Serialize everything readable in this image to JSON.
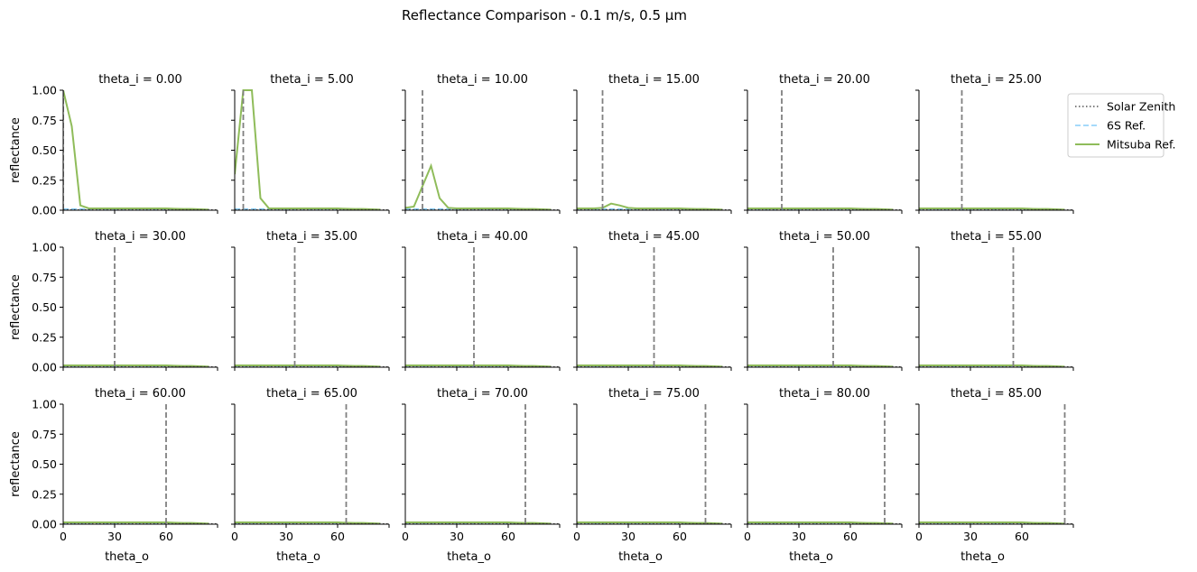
{
  "title": "Reflectance Comparison - 0.1 m/s, 0.5 µm",
  "colors": {
    "solar_zenith": "#808080",
    "six_s": "#87cefa",
    "mitsuba": "#8fbc5a"
  },
  "chart_data": {
    "type": "line",
    "title": "Reflectance Comparison - 0.1 m/s, 0.5 µm",
    "xlabel": "theta_o",
    "ylabel": "reflectance",
    "xlim": [
      0,
      90
    ],
    "ylim": [
      0,
      1
    ],
    "xticks": [
      "0",
      "30",
      "60"
    ],
    "yticks": [
      "0.00",
      "0.25",
      "0.50",
      "0.75",
      "1.00"
    ],
    "grid": false,
    "legend": {
      "placement": "right of top-right panel",
      "entries": [
        "Solar Zenith",
        "6S Ref.",
        "Mitsuba Ref."
      ]
    },
    "theta_o": [
      0,
      5,
      10,
      15,
      20,
      25,
      30,
      35,
      40,
      45,
      50,
      55,
      60,
      65,
      70,
      75,
      80,
      85
    ],
    "panels": [
      {
        "title": "theta_i = 0.00",
        "theta_i": 0,
        "series": [
          {
            "name": "6S Ref.",
            "values": [
              0.01,
              0.01,
              0.01,
              0.01,
              0.01,
              0.01,
              0.01,
              0.01,
              0.01,
              0.01,
              0.01,
              0.01,
              0.01,
              0.01,
              0.01,
              0.01,
              0.005,
              0.003
            ]
          },
          {
            "name": "Mitsuba Ref.",
            "values": [
              1.0,
              0.7,
              0.04,
              0.015,
              0.015,
              0.015,
              0.015,
              0.015,
              0.015,
              0.015,
              0.015,
              0.015,
              0.015,
              0.012,
              0.01,
              0.01,
              0.008,
              0.005
            ]
          }
        ]
      },
      {
        "title": "theta_i = 5.00",
        "theta_i": 5,
        "series": [
          {
            "name": "6S Ref.",
            "values": [
              0.01,
              0.01,
              0.01,
              0.01,
              0.01,
              0.01,
              0.01,
              0.01,
              0.01,
              0.01,
              0.01,
              0.01,
              0.01,
              0.01,
              0.01,
              0.01,
              0.005,
              0.003
            ]
          },
          {
            "name": "Mitsuba Ref.",
            "values": [
              0.3,
              1.0,
              1.0,
              0.1,
              0.015,
              0.015,
              0.015,
              0.015,
              0.015,
              0.015,
              0.015,
              0.015,
              0.015,
              0.012,
              0.01,
              0.01,
              0.008,
              0.005
            ]
          }
        ]
      },
      {
        "title": "theta_i = 10.00",
        "theta_i": 10,
        "series": [
          {
            "name": "6S Ref.",
            "values": [
              0.01,
              0.01,
              0.01,
              0.01,
              0.01,
              0.01,
              0.01,
              0.01,
              0.01,
              0.01,
              0.01,
              0.01,
              0.01,
              0.01,
              0.01,
              0.01,
              0.005,
              0.003
            ]
          },
          {
            "name": "Mitsuba Ref.",
            "values": [
              0.02,
              0.03,
              0.2,
              0.37,
              0.1,
              0.02,
              0.015,
              0.015,
              0.015,
              0.015,
              0.015,
              0.015,
              0.015,
              0.012,
              0.01,
              0.01,
              0.008,
              0.005
            ]
          }
        ]
      },
      {
        "title": "theta_i = 15.00",
        "theta_i": 15,
        "series": [
          {
            "name": "6S Ref.",
            "values": [
              0.01,
              0.01,
              0.01,
              0.01,
              0.01,
              0.01,
              0.01,
              0.01,
              0.01,
              0.01,
              0.01,
              0.01,
              0.01,
              0.01,
              0.01,
              0.01,
              0.005,
              0.003
            ]
          },
          {
            "name": "Mitsuba Ref.",
            "values": [
              0.015,
              0.015,
              0.015,
              0.02,
              0.055,
              0.04,
              0.02,
              0.015,
              0.015,
              0.015,
              0.015,
              0.015,
              0.015,
              0.012,
              0.01,
              0.01,
              0.008,
              0.005
            ]
          }
        ]
      },
      {
        "title": "theta_i = 20.00",
        "theta_i": 20,
        "series": [
          {
            "name": "6S Ref.",
            "values": [
              0.01,
              0.01,
              0.01,
              0.01,
              0.01,
              0.01,
              0.01,
              0.01,
              0.01,
              0.01,
              0.01,
              0.01,
              0.01,
              0.01,
              0.01,
              0.01,
              0.005,
              0.003
            ]
          },
          {
            "name": "Mitsuba Ref.",
            "values": [
              0.015,
              0.015,
              0.015,
              0.015,
              0.015,
              0.015,
              0.015,
              0.015,
              0.015,
              0.015,
              0.015,
              0.015,
              0.015,
              0.012,
              0.01,
              0.01,
              0.008,
              0.005
            ]
          }
        ]
      },
      {
        "title": "theta_i = 25.00",
        "theta_i": 25,
        "series": [
          {
            "name": "6S Ref.",
            "values": [
              0.01,
              0.01,
              0.01,
              0.01,
              0.01,
              0.01,
              0.01,
              0.01,
              0.01,
              0.01,
              0.01,
              0.01,
              0.01,
              0.01,
              0.01,
              0.01,
              0.005,
              0.003
            ]
          },
          {
            "name": "Mitsuba Ref.",
            "values": [
              0.015,
              0.015,
              0.015,
              0.015,
              0.015,
              0.015,
              0.015,
              0.015,
              0.015,
              0.015,
              0.015,
              0.015,
              0.015,
              0.012,
              0.01,
              0.01,
              0.008,
              0.005
            ]
          }
        ]
      },
      {
        "title": "theta_i = 30.00",
        "theta_i": 30,
        "series": [
          {
            "name": "6S Ref.",
            "values": [
              0.01,
              0.01,
              0.01,
              0.01,
              0.01,
              0.01,
              0.01,
              0.01,
              0.01,
              0.01,
              0.01,
              0.01,
              0.01,
              0.01,
              0.01,
              0.01,
              0.005,
              0.003
            ]
          },
          {
            "name": "Mitsuba Ref.",
            "values": [
              0.015,
              0.015,
              0.015,
              0.015,
              0.015,
              0.015,
              0.015,
              0.015,
              0.015,
              0.015,
              0.015,
              0.015,
              0.015,
              0.012,
              0.01,
              0.01,
              0.008,
              0.005
            ]
          }
        ]
      },
      {
        "title": "theta_i = 35.00",
        "theta_i": 35,
        "series": [
          {
            "name": "6S Ref.",
            "values": [
              0.01,
              0.01,
              0.01,
              0.01,
              0.01,
              0.01,
              0.01,
              0.01,
              0.01,
              0.01,
              0.01,
              0.01,
              0.01,
              0.01,
              0.01,
              0.01,
              0.005,
              0.003
            ]
          },
          {
            "name": "Mitsuba Ref.",
            "values": [
              0.015,
              0.015,
              0.015,
              0.015,
              0.015,
              0.015,
              0.015,
              0.015,
              0.015,
              0.015,
              0.015,
              0.015,
              0.015,
              0.012,
              0.01,
              0.01,
              0.008,
              0.005
            ]
          }
        ]
      },
      {
        "title": "theta_i = 40.00",
        "theta_i": 40,
        "series": [
          {
            "name": "6S Ref.",
            "values": [
              0.01,
              0.01,
              0.01,
              0.01,
              0.01,
              0.01,
              0.01,
              0.01,
              0.01,
              0.01,
              0.01,
              0.01,
              0.01,
              0.01,
              0.01,
              0.01,
              0.005,
              0.003
            ]
          },
          {
            "name": "Mitsuba Ref.",
            "values": [
              0.015,
              0.015,
              0.015,
              0.015,
              0.015,
              0.015,
              0.015,
              0.015,
              0.015,
              0.015,
              0.015,
              0.015,
              0.015,
              0.012,
              0.01,
              0.01,
              0.008,
              0.005
            ]
          }
        ]
      },
      {
        "title": "theta_i = 45.00",
        "theta_i": 45,
        "series": [
          {
            "name": "6S Ref.",
            "values": [
              0.01,
              0.01,
              0.01,
              0.01,
              0.01,
              0.01,
              0.01,
              0.01,
              0.01,
              0.01,
              0.01,
              0.01,
              0.01,
              0.01,
              0.01,
              0.01,
              0.005,
              0.003
            ]
          },
          {
            "name": "Mitsuba Ref.",
            "values": [
              0.015,
              0.015,
              0.015,
              0.015,
              0.015,
              0.015,
              0.015,
              0.015,
              0.015,
              0.015,
              0.015,
              0.015,
              0.015,
              0.012,
              0.01,
              0.01,
              0.008,
              0.005
            ]
          }
        ]
      },
      {
        "title": "theta_i = 50.00",
        "theta_i": 50,
        "series": [
          {
            "name": "6S Ref.",
            "values": [
              0.01,
              0.01,
              0.01,
              0.01,
              0.01,
              0.01,
              0.01,
              0.01,
              0.01,
              0.01,
              0.01,
              0.01,
              0.01,
              0.01,
              0.01,
              0.01,
              0.005,
              0.003
            ]
          },
          {
            "name": "Mitsuba Ref.",
            "values": [
              0.015,
              0.015,
              0.015,
              0.015,
              0.015,
              0.015,
              0.015,
              0.015,
              0.015,
              0.015,
              0.015,
              0.015,
              0.015,
              0.012,
              0.01,
              0.01,
              0.008,
              0.005
            ]
          }
        ]
      },
      {
        "title": "theta_i = 55.00",
        "theta_i": 55,
        "series": [
          {
            "name": "6S Ref.",
            "values": [
              0.01,
              0.01,
              0.01,
              0.01,
              0.01,
              0.01,
              0.01,
              0.01,
              0.01,
              0.01,
              0.01,
              0.01,
              0.01,
              0.01,
              0.01,
              0.01,
              0.005,
              0.003
            ]
          },
          {
            "name": "Mitsuba Ref.",
            "values": [
              0.015,
              0.015,
              0.015,
              0.015,
              0.015,
              0.015,
              0.015,
              0.015,
              0.015,
              0.015,
              0.015,
              0.015,
              0.015,
              0.012,
              0.01,
              0.01,
              0.008,
              0.005
            ]
          }
        ]
      },
      {
        "title": "theta_i = 60.00",
        "theta_i": 60,
        "series": [
          {
            "name": "6S Ref.",
            "values": [
              0.01,
              0.01,
              0.01,
              0.01,
              0.01,
              0.01,
              0.01,
              0.01,
              0.01,
              0.01,
              0.01,
              0.01,
              0.01,
              0.01,
              0.01,
              0.01,
              0.005,
              0.003
            ]
          },
          {
            "name": "Mitsuba Ref.",
            "values": [
              0.015,
              0.015,
              0.015,
              0.015,
              0.015,
              0.015,
              0.015,
              0.015,
              0.015,
              0.015,
              0.015,
              0.015,
              0.015,
              0.012,
              0.01,
              0.01,
              0.008,
              0.005
            ]
          }
        ]
      },
      {
        "title": "theta_i = 65.00",
        "theta_i": 65,
        "series": [
          {
            "name": "6S Ref.",
            "values": [
              0.01,
              0.01,
              0.01,
              0.01,
              0.01,
              0.01,
              0.01,
              0.01,
              0.01,
              0.01,
              0.01,
              0.01,
              0.01,
              0.01,
              0.01,
              0.01,
              0.005,
              0.003
            ]
          },
          {
            "name": "Mitsuba Ref.",
            "values": [
              0.015,
              0.015,
              0.015,
              0.015,
              0.015,
              0.015,
              0.015,
              0.015,
              0.015,
              0.015,
              0.015,
              0.015,
              0.015,
              0.012,
              0.01,
              0.01,
              0.008,
              0.005
            ]
          }
        ]
      },
      {
        "title": "theta_i = 70.00",
        "theta_i": 70,
        "series": [
          {
            "name": "6S Ref.",
            "values": [
              0.01,
              0.01,
              0.01,
              0.01,
              0.01,
              0.01,
              0.01,
              0.01,
              0.01,
              0.01,
              0.01,
              0.01,
              0.01,
              0.01,
              0.01,
              0.01,
              0.005,
              0.003
            ]
          },
          {
            "name": "Mitsuba Ref.",
            "values": [
              0.015,
              0.015,
              0.015,
              0.015,
              0.015,
              0.015,
              0.015,
              0.015,
              0.015,
              0.015,
              0.015,
              0.015,
              0.015,
              0.012,
              0.01,
              0.01,
              0.008,
              0.005
            ]
          }
        ]
      },
      {
        "title": "theta_i = 75.00",
        "theta_i": 75,
        "series": [
          {
            "name": "6S Ref.",
            "values": [
              0.01,
              0.01,
              0.01,
              0.01,
              0.01,
              0.01,
              0.01,
              0.01,
              0.01,
              0.01,
              0.01,
              0.01,
              0.01,
              0.01,
              0.01,
              0.01,
              0.005,
              0.003
            ]
          },
          {
            "name": "Mitsuba Ref.",
            "values": [
              0.015,
              0.015,
              0.015,
              0.015,
              0.015,
              0.015,
              0.015,
              0.015,
              0.015,
              0.015,
              0.015,
              0.015,
              0.015,
              0.012,
              0.01,
              0.01,
              0.008,
              0.005
            ]
          }
        ]
      },
      {
        "title": "theta_i = 80.00",
        "theta_i": 80,
        "series": [
          {
            "name": "6S Ref.",
            "values": [
              0.01,
              0.01,
              0.01,
              0.01,
              0.01,
              0.01,
              0.01,
              0.01,
              0.01,
              0.01,
              0.01,
              0.01,
              0.01,
              0.01,
              0.01,
              0.01,
              0.005,
              0.003
            ]
          },
          {
            "name": "Mitsuba Ref.",
            "values": [
              0.015,
              0.015,
              0.015,
              0.015,
              0.015,
              0.015,
              0.015,
              0.015,
              0.015,
              0.015,
              0.015,
              0.015,
              0.015,
              0.012,
              0.01,
              0.01,
              0.008,
              0.005
            ]
          }
        ]
      },
      {
        "title": "theta_i = 85.00",
        "theta_i": 85,
        "series": [
          {
            "name": "6S Ref.",
            "values": [
              0.01,
              0.01,
              0.01,
              0.01,
              0.01,
              0.01,
              0.01,
              0.01,
              0.01,
              0.01,
              0.01,
              0.01,
              0.01,
              0.01,
              0.01,
              0.01,
              0.005,
              0.003
            ]
          },
          {
            "name": "Mitsuba Ref.",
            "values": [
              0.015,
              0.015,
              0.015,
              0.015,
              0.015,
              0.015,
              0.015,
              0.015,
              0.015,
              0.015,
              0.015,
              0.015,
              0.015,
              0.012,
              0.01,
              0.01,
              0.008,
              0.005
            ]
          }
        ]
      }
    ]
  }
}
